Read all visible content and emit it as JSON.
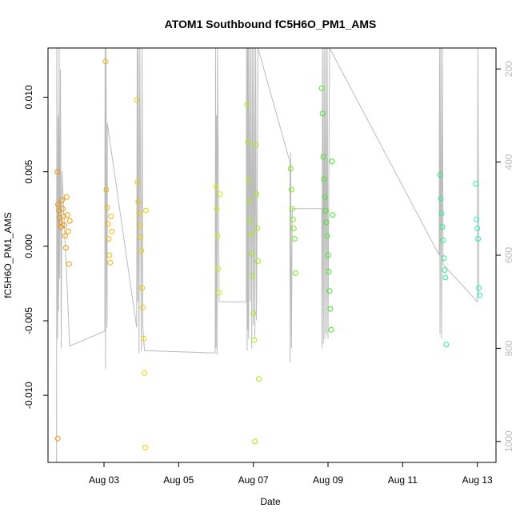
{
  "chart_data": {
    "type": "scatter",
    "title": "ATOM1 Southbound fC5H6O_PM1_AMS",
    "xlabel": "Date",
    "ylabel": "fC5H6O_PM1_AMS",
    "xlim": [
      "2016-08-01T12:00",
      "2016-08-13T12:00"
    ],
    "ylim": [
      -0.0145,
      0.0133
    ],
    "y2lim": [
      1045,
      155
    ],
    "x_ticks": [
      "Aug 03",
      "Aug 05",
      "Aug 07",
      "Aug 09",
      "Aug 11",
      "Aug 13"
    ],
    "x_tick_dates": [
      "2016-08-03",
      "2016-08-05",
      "2016-08-07",
      "2016-08-09",
      "2016-08-11",
      "2016-08-13"
    ],
    "y_ticks": [
      -0.01,
      -0.005,
      0.0,
      0.005,
      0.01
    ],
    "y_tick_labels": [
      "-0.010",
      "-0.005",
      "0.000",
      "0.005",
      "0.010"
    ],
    "y2_ticks": [
      200,
      400,
      600,
      800,
      1000
    ],
    "y2_tick_labels": [
      "200",
      "400",
      "600",
      "800",
      "1000"
    ],
    "grid": false,
    "point_color_gradient": [
      "#f08c00",
      "#f0f000",
      "#28e628",
      "#28f0c8"
    ],
    "line_color": "#bbbbbb",
    "points": [
      [
        "2016-08-01T18:00",
        0.005
      ],
      [
        "2016-08-01T18:30",
        0.0028
      ],
      [
        "2016-08-01T19:00",
        0.0024
      ],
      [
        "2016-08-01T19:30",
        0.0019
      ],
      [
        "2016-08-01T20:00",
        0.0016
      ],
      [
        "2016-08-01T20:30",
        0.0013
      ],
      [
        "2016-08-01T21:00",
        0.0031
      ],
      [
        "2016-08-01T21:30",
        0.0025
      ],
      [
        "2016-08-01T22:00",
        0.002
      ],
      [
        "2016-08-01T22:30",
        0.0014
      ],
      [
        "2016-08-01T23:00",
        0.0007
      ],
      [
        "2016-08-01T23:30",
        -0.0001
      ],
      [
        "2016-08-02T00:00",
        0.0033
      ],
      [
        "2016-08-02T00:30",
        0.0021
      ],
      [
        "2016-08-02T01:00",
        0.001
      ],
      [
        "2016-08-02T01:30",
        -0.0012
      ],
      [
        "2016-08-02T02:00",
        0.0017
      ],
      [
        "2016-08-01T18:15",
        -0.0129
      ],
      [
        "2016-08-03T01:00",
        0.0124
      ],
      [
        "2016-08-03T01:30",
        0.0038
      ],
      [
        "2016-08-03T02:00",
        0.0026
      ],
      [
        "2016-08-03T02:30",
        0.0015
      ],
      [
        "2016-08-03T03:00",
        0.0005
      ],
      [
        "2016-08-03T03:30",
        -0.0006
      ],
      [
        "2016-08-03T04:00",
        -0.0011
      ],
      [
        "2016-08-03T04:30",
        0.002
      ],
      [
        "2016-08-03T05:00",
        0.001
      ],
      [
        "2016-08-03T21:00",
        0.0098
      ],
      [
        "2016-08-03T21:30",
        0.0043
      ],
      [
        "2016-08-03T22:00",
        0.003
      ],
      [
        "2016-08-03T22:30",
        0.0022
      ],
      [
        "2016-08-03T23:00",
        0.0014
      ],
      [
        "2016-08-03T23:30",
        0.0006
      ],
      [
        "2016-08-04T00:00",
        -0.0003
      ],
      [
        "2016-08-04T00:30",
        -0.0028
      ],
      [
        "2016-08-04T01:00",
        -0.0041
      ],
      [
        "2016-08-04T01:30",
        -0.0062
      ],
      [
        "2016-08-04T02:00",
        -0.0085
      ],
      [
        "2016-08-04T02:30",
        -0.0135
      ],
      [
        "2016-08-04T03:00",
        0.0024
      ],
      [
        "2016-08-06T00:00",
        0.004
      ],
      [
        "2016-08-06T00:30",
        0.0025
      ],
      [
        "2016-08-06T01:00",
        0.0007
      ],
      [
        "2016-08-06T01:30",
        -0.0015
      ],
      [
        "2016-08-06T02:00",
        -0.0031
      ],
      [
        "2016-08-06T02:30",
        0.0035
      ],
      [
        "2016-08-06T20:00",
        0.0095
      ],
      [
        "2016-08-06T20:30",
        0.007
      ],
      [
        "2016-08-06T21:00",
        0.0044
      ],
      [
        "2016-08-06T21:30",
        0.003
      ],
      [
        "2016-08-06T22:00",
        0.0017
      ],
      [
        "2016-08-06T22:30",
        0.0008
      ],
      [
        "2016-08-06T23:00",
        -0.0005
      ],
      [
        "2016-08-06T23:30",
        -0.002
      ],
      [
        "2016-08-07T00:00",
        -0.0045
      ],
      [
        "2016-08-07T00:30",
        -0.0063
      ],
      [
        "2016-08-07T01:00",
        -0.0131
      ],
      [
        "2016-08-07T01:30",
        0.0068
      ],
      [
        "2016-08-07T02:00",
        0.0035
      ],
      [
        "2016-08-07T02:30",
        0.0012
      ],
      [
        "2016-08-07T03:00",
        -0.001
      ],
      [
        "2016-08-07T03:30",
        -0.0089
      ],
      [
        "2016-08-08T00:00",
        0.0052
      ],
      [
        "2016-08-08T00:30",
        0.0038
      ],
      [
        "2016-08-08T01:00",
        0.0025
      ],
      [
        "2016-08-08T01:30",
        0.0018
      ],
      [
        "2016-08-08T02:00",
        0.0012
      ],
      [
        "2016-08-08T02:30",
        0.0005
      ],
      [
        "2016-08-08T03:00",
        -0.0018
      ],
      [
        "2016-08-08T20:00",
        0.0106
      ],
      [
        "2016-08-08T20:30",
        0.0089
      ],
      [
        "2016-08-08T21:00",
        0.006
      ],
      [
        "2016-08-08T21:30",
        0.0045
      ],
      [
        "2016-08-08T22:00",
        0.0033
      ],
      [
        "2016-08-08T22:30",
        0.0024
      ],
      [
        "2016-08-08T23:00",
        0.0016
      ],
      [
        "2016-08-08T23:30",
        0.0007
      ],
      [
        "2016-08-09T00:00",
        -0.0006
      ],
      [
        "2016-08-09T00:30",
        -0.0017
      ],
      [
        "2016-08-09T01:00",
        -0.003
      ],
      [
        "2016-08-09T01:30",
        -0.0042
      ],
      [
        "2016-08-09T02:00",
        -0.0056
      ],
      [
        "2016-08-09T02:30",
        0.0057
      ],
      [
        "2016-08-09T03:00",
        0.0021
      ],
      [
        "2016-08-12T00:00",
        0.0048
      ],
      [
        "2016-08-12T00:30",
        0.0032
      ],
      [
        "2016-08-12T01:00",
        0.0022
      ],
      [
        "2016-08-12T01:30",
        0.0013
      ],
      [
        "2016-08-12T02:00",
        0.0004
      ],
      [
        "2016-08-12T02:30",
        -0.0008
      ],
      [
        "2016-08-12T03:00",
        -0.0016
      ],
      [
        "2016-08-12T03:30",
        -0.0021
      ],
      [
        "2016-08-12T04:00",
        -0.0066
      ],
      [
        "2016-08-12T23:00",
        0.0042
      ],
      [
        "2016-08-12T23:30",
        0.0018
      ],
      [
        "2016-08-13T00:00",
        0.0012
      ],
      [
        "2016-08-13T00:30",
        0.0005
      ],
      [
        "2016-08-13T01:00",
        -0.0028
      ],
      [
        "2016-08-13T01:30",
        -0.0033
      ]
    ],
    "altitude_line": [
      [
        "2016-08-01T17:30",
        1045
      ],
      [
        "2016-08-01T17:40",
        155
      ],
      [
        "2016-08-01T17:55",
        520
      ],
      [
        "2016-08-01T18:10",
        780
      ],
      [
        "2016-08-01T18:30",
        300
      ],
      [
        "2016-08-01T18:50",
        720
      ],
      [
        "2016-08-01T19:10",
        155
      ],
      [
        "2016-08-01T19:30",
        650
      ],
      [
        "2016-08-01T20:00",
        200
      ],
      [
        "2016-08-01T20:30",
        800
      ],
      [
        "2016-08-01T21:00",
        420
      ],
      [
        "2016-08-02T02:00",
        795
      ],
      [
        "2016-08-03T00:30",
        763
      ],
      [
        "2016-08-03T00:40",
        155
      ],
      [
        "2016-08-03T01:00",
        845
      ],
      [
        "2016-08-03T01:20",
        155
      ],
      [
        "2016-08-03T01:40",
        600
      ],
      [
        "2016-08-03T02:00",
        755
      ],
      [
        "2016-08-03T02:10",
        317
      ],
      [
        "2016-08-03T21:00",
        755
      ],
      [
        "2016-08-03T21:20",
        155
      ],
      [
        "2016-08-03T21:40",
        700
      ],
      [
        "2016-08-03T22:00",
        155
      ],
      [
        "2016-08-03T22:30",
        810
      ],
      [
        "2016-08-03T23:00",
        155
      ],
      [
        "2016-08-04T00:00",
        805
      ],
      [
        "2016-08-04T00:30",
        155
      ],
      [
        "2016-08-04T01:00",
        755
      ],
      [
        "2016-08-04T02:00",
        805
      ],
      [
        "2016-08-05T23:30",
        810
      ],
      [
        "2016-08-05T23:40",
        155
      ],
      [
        "2016-08-06T00:00",
        800
      ],
      [
        "2016-08-06T00:20",
        300
      ],
      [
        "2016-08-06T00:40",
        815
      ],
      [
        "2016-08-06T01:00",
        155
      ],
      [
        "2016-08-06T02:00",
        700
      ],
      [
        "2016-08-06T19:30",
        700
      ],
      [
        "2016-08-06T19:40",
        155
      ],
      [
        "2016-08-06T20:00",
        805
      ],
      [
        "2016-08-06T20:15",
        155
      ],
      [
        "2016-08-06T20:30",
        760
      ],
      [
        "2016-08-06T20:45",
        155
      ],
      [
        "2016-08-06T21:00",
        780
      ],
      [
        "2016-08-06T21:30",
        155
      ],
      [
        "2016-08-06T22:00",
        700
      ],
      [
        "2016-08-06T22:30",
        155
      ],
      [
        "2016-08-06T23:00",
        800
      ],
      [
        "2016-08-06T23:30",
        155
      ],
      [
        "2016-08-07T00:00",
        750
      ],
      [
        "2016-08-07T00:30",
        155
      ],
      [
        "2016-08-07T01:00",
        780
      ],
      [
        "2016-08-07T01:30",
        155
      ],
      [
        "2016-08-07T02:00",
        740
      ],
      [
        "2016-08-07T03:00",
        155
      ],
      [
        "2016-08-07T23:30",
        400
      ],
      [
        "2016-08-07T23:40",
        830
      ],
      [
        "2016-08-08T00:00",
        380
      ],
      [
        "2016-08-08T00:30",
        800
      ],
      [
        "2016-08-08T01:00",
        500
      ],
      [
        "2016-08-08T20:00",
        500
      ],
      [
        "2016-08-08T20:10",
        800
      ],
      [
        "2016-08-08T20:30",
        155
      ],
      [
        "2016-08-08T21:00",
        790
      ],
      [
        "2016-08-08T21:30",
        155
      ],
      [
        "2016-08-08T22:00",
        780
      ],
      [
        "2016-08-08T22:30",
        155
      ],
      [
        "2016-08-08T23:00",
        770
      ],
      [
        "2016-08-08T23:30",
        155
      ],
      [
        "2016-08-09T00:00",
        780
      ],
      [
        "2016-08-09T01:00",
        155
      ],
      [
        "2016-08-11T23:30",
        600
      ],
      [
        "2016-08-11T23:40",
        155
      ],
      [
        "2016-08-12T00:00",
        770
      ],
      [
        "2016-08-12T00:30",
        155
      ],
      [
        "2016-08-12T01:00",
        780
      ],
      [
        "2016-08-12T01:30",
        155
      ],
      [
        "2016-08-12T02:00",
        620
      ],
      [
        "2016-08-13T00:00",
        700
      ],
      [
        "2016-08-13T00:20",
        155
      ],
      [
        "2016-08-13T01:00",
        690
      ]
    ]
  }
}
